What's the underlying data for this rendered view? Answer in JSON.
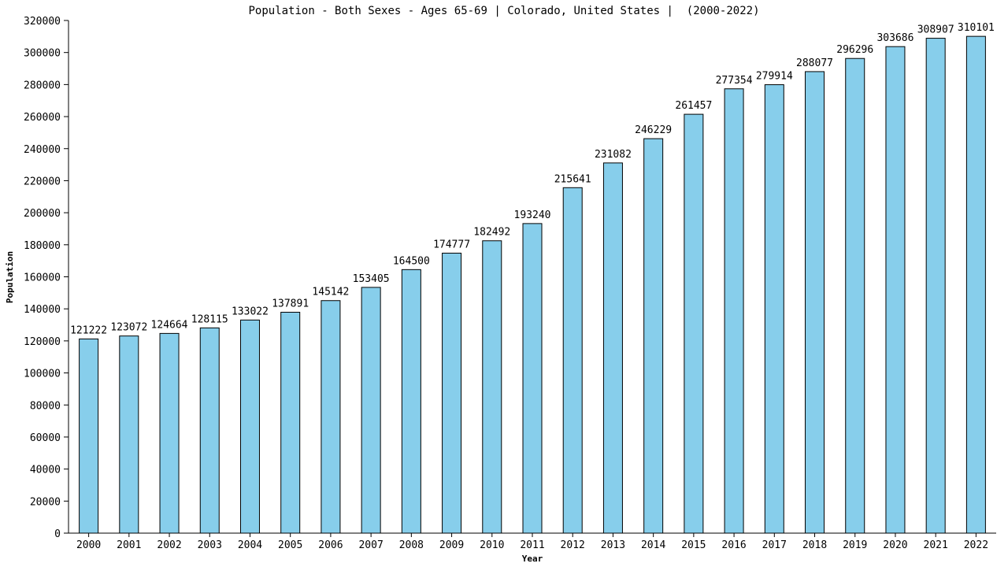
{
  "chart_data": {
    "type": "bar",
    "title": "Population - Both Sexes - Ages 65-69 | Colorado, United States |  (2000-2022)",
    "xlabel": "Year",
    "ylabel": "Population",
    "ylim": [
      0,
      320000
    ],
    "ytick_step": 20000,
    "grid": false,
    "legend": "none",
    "bar_color": "#87ceeb",
    "bar_edge_color": "#000000",
    "categories": [
      "2000",
      "2001",
      "2002",
      "2003",
      "2004",
      "2005",
      "2006",
      "2007",
      "2008",
      "2009",
      "2010",
      "2011",
      "2012",
      "2013",
      "2014",
      "2015",
      "2016",
      "2017",
      "2018",
      "2019",
      "2020",
      "2021",
      "2022"
    ],
    "values": [
      121222,
      123072,
      124664,
      128115,
      133022,
      137891,
      145142,
      153405,
      164500,
      174777,
      182492,
      193240,
      215641,
      231082,
      246229,
      261457,
      277354,
      279914,
      288077,
      296296,
      303686,
      308907,
      310101
    ]
  }
}
